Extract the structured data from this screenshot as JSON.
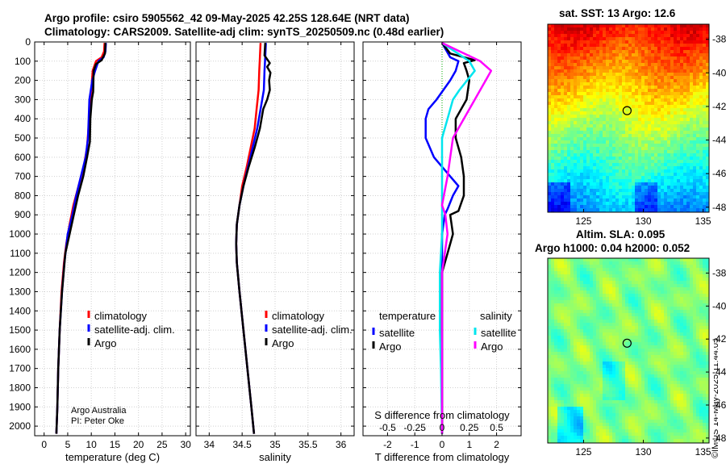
{
  "header": {
    "title_line1": "Argo profile: csiro 5905562_42 09-May-2025 42.25S 128.64E (NRT data)",
    "title_line2": "Climatology: CARS2009. Satellite-adj clim: synTS_20250509.nc (0.48d earlier)"
  },
  "credits": {
    "line1": "Argo Australia",
    "line2": "PI: Peter Oke"
  },
  "timestamp": "©IMOS 14-May-2025 11:44:05",
  "colors": {
    "climatology": "#ff0000",
    "satellite": "#0000ff",
    "argo": "#000000",
    "sat_diff": "#00e5ee",
    "argo_s_diff": "#ff00ff"
  },
  "chart_data": [
    {
      "type": "line",
      "xlabel": "temperature (deg C)",
      "ylabel": "",
      "xlim": [
        -2,
        31
      ],
      "ylim": [
        2050,
        0
      ],
      "xticks": [
        0,
        5,
        10,
        15,
        20,
        25,
        30
      ],
      "yticks": [
        0,
        100,
        200,
        300,
        400,
        500,
        600,
        700,
        800,
        900,
        1000,
        1100,
        1200,
        1300,
        1400,
        1500,
        1600,
        1700,
        1800,
        1900,
        2000
      ],
      "legend": [
        "climatology",
        "satellite-adj. clim.",
        "Argo"
      ],
      "series": [
        {
          "name": "climatology",
          "color": "#ff0000",
          "points": [
            [
              12.8,
              5
            ],
            [
              12.7,
              50
            ],
            [
              12.2,
              80
            ],
            [
              11.0,
              100
            ],
            [
              10.3,
              150
            ],
            [
              10.0,
              250
            ],
            [
              9.7,
              350
            ],
            [
              9.4,
              450
            ],
            [
              9.1,
              550
            ],
            [
              8.4,
              650
            ],
            [
              7.3,
              750
            ],
            [
              6.2,
              850
            ],
            [
              5.4,
              950
            ],
            [
              4.7,
              1050
            ],
            [
              4.2,
              1150
            ],
            [
              3.7,
              1300
            ],
            [
              3.3,
              1500
            ],
            [
              3.0,
              1700
            ],
            [
              2.8,
              1900
            ],
            [
              2.6,
              2040
            ]
          ]
        },
        {
          "name": "satellite-adj. clim.",
          "color": "#0000ff",
          "points": [
            [
              13.1,
              5
            ],
            [
              13.0,
              50
            ],
            [
              12.6,
              80
            ],
            [
              11.5,
              100
            ],
            [
              10.8,
              150
            ],
            [
              10.2,
              200
            ],
            [
              9.6,
              300
            ],
            [
              9.3,
              500
            ],
            [
              8.8,
              600
            ],
            [
              7.8,
              700
            ],
            [
              6.8,
              800
            ],
            [
              6.0,
              900
            ],
            [
              5.0,
              1000
            ],
            [
              4.3,
              1150
            ],
            [
              3.8,
              1300
            ],
            [
              3.3,
              1500
            ],
            [
              3.0,
              1700
            ],
            [
              2.8,
              1900
            ],
            [
              2.6,
              2040
            ]
          ]
        },
        {
          "name": "Argo",
          "color": "#000000",
          "points": [
            [
              13.0,
              5
            ],
            [
              12.9,
              60
            ],
            [
              12.2,
              95
            ],
            [
              11.0,
              115
            ],
            [
              10.5,
              150
            ],
            [
              10.4,
              260
            ],
            [
              10.1,
              300
            ],
            [
              9.8,
              400
            ],
            [
              9.7,
              520
            ],
            [
              9.1,
              600
            ],
            [
              8.3,
              700
            ],
            [
              7.2,
              800
            ],
            [
              6.3,
              900
            ],
            [
              5.4,
              1000
            ],
            [
              4.5,
              1100
            ],
            [
              3.8,
              1300
            ],
            [
              3.3,
              1500
            ],
            [
              3.0,
              1700
            ],
            [
              2.8,
              1900
            ],
            [
              2.6,
              2040
            ]
          ]
        }
      ]
    },
    {
      "type": "line",
      "xlabel": "salinity",
      "xlim": [
        33.8,
        36.2
      ],
      "ylim": [
        2050,
        0
      ],
      "xticks": [
        34,
        34.5,
        35,
        35.5,
        36
      ],
      "legend": [
        "climatology",
        "satellite-adj. clim.",
        "Argo"
      ],
      "series": [
        {
          "name": "climatology",
          "color": "#ff0000",
          "points": [
            [
              34.78,
              5
            ],
            [
              34.77,
              80
            ],
            [
              34.76,
              150
            ],
            [
              34.75,
              250
            ],
            [
              34.72,
              350
            ],
            [
              34.69,
              450
            ],
            [
              34.63,
              550
            ],
            [
              34.57,
              650
            ],
            [
              34.5,
              750
            ],
            [
              34.46,
              850
            ],
            [
              34.42,
              950
            ],
            [
              34.41,
              1050
            ],
            [
              34.42,
              1150
            ],
            [
              34.46,
              1300
            ],
            [
              34.52,
              1500
            ],
            [
              34.58,
              1700
            ],
            [
              34.64,
              1900
            ],
            [
              34.68,
              2040
            ]
          ]
        },
        {
          "name": "satellite-adj. clim.",
          "color": "#0000ff",
          "points": [
            [
              34.86,
              5
            ],
            [
              34.85,
              80
            ],
            [
              34.84,
              150
            ],
            [
              34.83,
              250
            ],
            [
              34.78,
              350
            ],
            [
              34.73,
              450
            ],
            [
              34.66,
              550
            ],
            [
              34.59,
              650
            ],
            [
              34.52,
              750
            ],
            [
              34.46,
              850
            ],
            [
              34.42,
              950
            ],
            [
              34.41,
              1050
            ],
            [
              34.42,
              1150
            ],
            [
              34.46,
              1300
            ],
            [
              34.52,
              1500
            ],
            [
              34.58,
              1700
            ],
            [
              34.64,
              1900
            ],
            [
              34.68,
              2040
            ]
          ]
        },
        {
          "name": "Argo",
          "color": "#000000",
          "points": [
            [
              34.85,
              5
            ],
            [
              34.84,
              70
            ],
            [
              34.92,
              110
            ],
            [
              34.88,
              130
            ],
            [
              34.93,
              160
            ],
            [
              34.91,
              200
            ],
            [
              34.92,
              250
            ],
            [
              34.88,
              300
            ],
            [
              34.82,
              350
            ],
            [
              34.77,
              450
            ],
            [
              34.69,
              550
            ],
            [
              34.6,
              650
            ],
            [
              34.52,
              750
            ],
            [
              34.46,
              850
            ],
            [
              34.42,
              950
            ],
            [
              34.41,
              1050
            ],
            [
              34.42,
              1150
            ],
            [
              34.46,
              1300
            ],
            [
              34.52,
              1500
            ],
            [
              34.58,
              1700
            ],
            [
              34.64,
              1900
            ],
            [
              34.68,
              2040
            ]
          ]
        }
      ]
    },
    {
      "type": "line",
      "xlabel": "T difference from climatology",
      "xlabel_top": "S difference from climatology",
      "xlim": [
        -2.9,
        2.9
      ],
      "ylim": [
        2050,
        0
      ],
      "xticks": [
        -2,
        -1,
        0,
        1,
        2
      ],
      "s_ticks": [
        -0.5,
        -0.25,
        0,
        0.25,
        0.5
      ],
      "s_tick_labels": [
        "-0.5",
        "-0.25",
        "0",
        "0.25",
        "0.5"
      ],
      "legend_left_title": "temperature",
      "legend_right_title": "salinity",
      "legend_left": [
        "satellite",
        "Argo"
      ],
      "legend_right": [
        "satellite",
        "Argo"
      ],
      "series": [
        {
          "name": "T satellite",
          "color": "#0000ff",
          "points": [
            [
              0,
              5
            ],
            [
              0.3,
              80
            ],
            [
              0.6,
              100
            ],
            [
              0.5,
              150
            ],
            [
              0.3,
              200
            ],
            [
              -0.2,
              300
            ],
            [
              -0.5,
              350
            ],
            [
              -0.6,
              400
            ],
            [
              -0.6,
              500
            ],
            [
              -0.3,
              600
            ],
            [
              0.3,
              700
            ],
            [
              0.6,
              750
            ],
            [
              0.4,
              800
            ],
            [
              0.2,
              870
            ],
            [
              0.1,
              900
            ],
            [
              0,
              1000
            ],
            [
              0,
              2040
            ]
          ]
        },
        {
          "name": "T Argo",
          "color": "#000000",
          "points": [
            [
              0,
              5
            ],
            [
              0.3,
              60
            ],
            [
              1.2,
              95
            ],
            [
              0.8,
              110
            ],
            [
              0.9,
              150
            ],
            [
              1.0,
              200
            ],
            [
              0.9,
              300
            ],
            [
              0.5,
              400
            ],
            [
              0.5,
              500
            ],
            [
              0.7,
              600
            ],
            [
              0.8,
              700
            ],
            [
              0.8,
              800
            ],
            [
              0.6,
              880
            ],
            [
              0.3,
              900
            ],
            [
              0.4,
              1000
            ],
            [
              0.2,
              1100
            ],
            [
              0,
              1200
            ],
            [
              0,
              2040
            ]
          ]
        },
        {
          "name": "S satellite",
          "color": "#00e5ee",
          "points": [
            [
              0,
              5
            ],
            [
              0.25,
              100
            ],
            [
              0.3,
              150
            ],
            [
              0.16,
              250
            ],
            [
              0.1,
              300
            ],
            [
              0.05,
              400
            ],
            [
              0,
              500
            ],
            [
              0,
              800
            ],
            [
              0,
              1000
            ],
            [
              -0.02,
              1200
            ],
            [
              -0.02,
              1500
            ],
            [
              -0.01,
              1700
            ],
            [
              0,
              2040
            ]
          ]
        },
        {
          "name": "S Argo",
          "color": "#ff00ff",
          "points": [
            [
              0,
              5
            ],
            [
              0.35,
              100
            ],
            [
              0.45,
              150
            ],
            [
              0.4,
              200
            ],
            [
              0.3,
              300
            ],
            [
              0.2,
              400
            ],
            [
              0.1,
              500
            ],
            [
              0.05,
              700
            ],
            [
              0,
              850
            ],
            [
              0.03,
              900
            ],
            [
              0.05,
              1000
            ],
            [
              0,
              1200
            ],
            [
              0,
              2040
            ]
          ]
        }
      ]
    },
    {
      "type": "heatmap",
      "title": "sat. SST: 13 Argo: 12.6",
      "xlim": [
        122,
        135.5
      ],
      "ylim": [
        -48.3,
        -37.1
      ],
      "xticks": [
        125,
        130,
        135
      ],
      "yticks": [
        -38,
        -40,
        -42,
        -44,
        -46,
        -48
      ],
      "marker": [
        128.64,
        -42.25
      ]
    },
    {
      "type": "heatmap",
      "title": "Altim. SLA: 0.095",
      "subtitle": "Argo h1000: 0.04 h2000: 0.052",
      "xlim": [
        122,
        135.5
      ],
      "ylim": [
        -48.3,
        -37.1
      ],
      "xticks": [
        125,
        130,
        135
      ],
      "yticks": [
        -38,
        -40,
        -42,
        -44,
        -46,
        -48
      ],
      "marker": [
        128.64,
        -42.25
      ]
    }
  ]
}
